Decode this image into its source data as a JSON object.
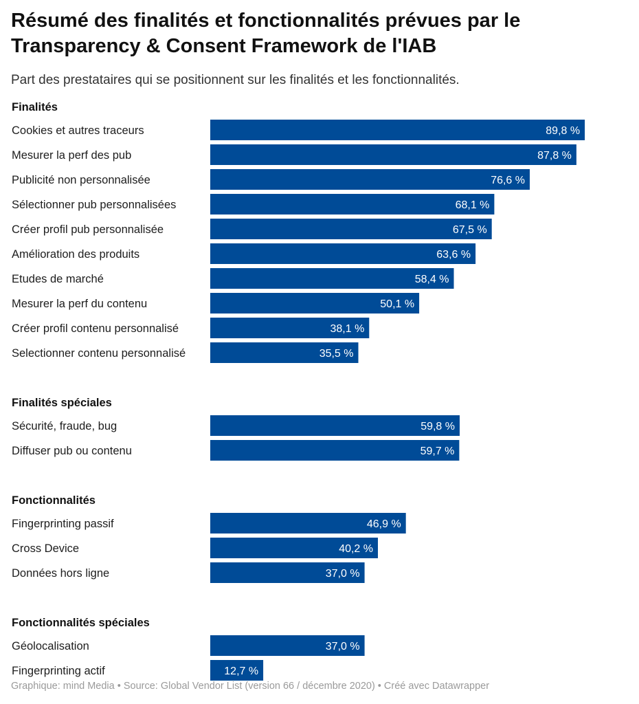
{
  "header": {
    "title": "Résumé des finalités et fonctionnalités prévues par le Transparency & Consent Framework de l'IAB",
    "subtitle": "Part des prestataires qui se positionnent sur les finalités et les fonctionnalités."
  },
  "footer": {
    "source": "Graphique: mind Media • Source: Global Vendor List (version 66 / décembre 2020) • Créé avec Datawrapper"
  },
  "colors": {
    "bar": "#004b97",
    "bar_label": "#ffffff",
    "text": "#1d1d1d"
  },
  "chart_data": {
    "type": "bar",
    "orientation": "horizontal",
    "unit": "%",
    "xlim": [
      0,
      100
    ],
    "grid": false,
    "groups": [
      {
        "name": "Finalités",
        "categories": [
          "Cookies et autres traceurs",
          "Mesurer la perf des pub",
          "Publicité non personnalisée",
          "Sélectionner pub personnalisées",
          "Créer profil pub personnalisée",
          "Amélioration des produits",
          "Etudes de marché",
          "Mesurer la perf du contenu",
          "Créer profil contenu personnalisé",
          "Selectionner contenu personnalisé"
        ],
        "values": [
          89.8,
          87.8,
          76.6,
          68.1,
          67.5,
          63.6,
          58.4,
          50.1,
          38.1,
          35.5
        ],
        "labels": [
          "89,8 %",
          "87,8 %",
          "76,6 %",
          "68,1 %",
          "67,5 %",
          "63,6 %",
          "58,4 %",
          "50,1 %",
          "38,1 %",
          "35,5 %"
        ]
      },
      {
        "name": "Finalités spéciales",
        "categories": [
          "Sécurité, fraude, bug",
          "Diffuser pub ou contenu"
        ],
        "values": [
          59.8,
          59.7
        ],
        "labels": [
          "59,8 %",
          "59,7 %"
        ]
      },
      {
        "name": "Fonctionnalités",
        "categories": [
          "Fingerprinting passif",
          "Cross Device",
          "Données hors ligne"
        ],
        "values": [
          46.9,
          40.2,
          37.0
        ],
        "labels": [
          "46,9 %",
          "40,2 %",
          "37,0 %"
        ]
      },
      {
        "name": "Fonctionnalités spéciales",
        "categories": [
          "Géolocalisation",
          "Fingerprinting actif"
        ],
        "values": [
          37.0,
          12.7
        ],
        "labels": [
          "37,0 %",
          "12,7 %"
        ]
      }
    ]
  }
}
